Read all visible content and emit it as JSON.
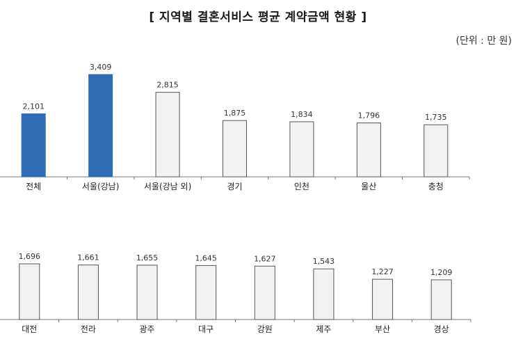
{
  "title": "[ 지역별 결혼서비스 평균 계약금액 현황 ]",
  "unit": "(단위 : 만 원)",
  "colors": {
    "highlight": "#2e6db4",
    "default_fill": "#f2f2f2",
    "default_stroke": "#555555"
  },
  "chart_data": [
    {
      "type": "bar",
      "categories": [
        "전체",
        "서울(강남)",
        "서울(강남 외)",
        "경기",
        "인천",
        "울산",
        "충청"
      ],
      "values": [
        2101,
        3409,
        2815,
        1875,
        1834,
        1796,
        1735
      ],
      "data_labels": [
        "2,101",
        "3,409",
        "2,815",
        "1,875",
        "1,834",
        "1,796",
        "1,735"
      ],
      "highlighted": [
        true,
        true,
        false,
        false,
        false,
        false,
        false
      ],
      "ylim": [
        0,
        3409
      ]
    },
    {
      "type": "bar",
      "categories": [
        "대전",
        "전라",
        "광주",
        "대구",
        "강원",
        "제주",
        "부산",
        "경상"
      ],
      "values": [
        1696,
        1661,
        1655,
        1645,
        1627,
        1543,
        1227,
        1209
      ],
      "data_labels": [
        "1,696",
        "1,661",
        "1,655",
        "1,645",
        "1,627",
        "1,543",
        "1,227",
        "1,209"
      ],
      "highlighted": [
        false,
        false,
        false,
        false,
        false,
        false,
        false,
        false
      ],
      "ylim": [
        0,
        1696
      ]
    }
  ]
}
